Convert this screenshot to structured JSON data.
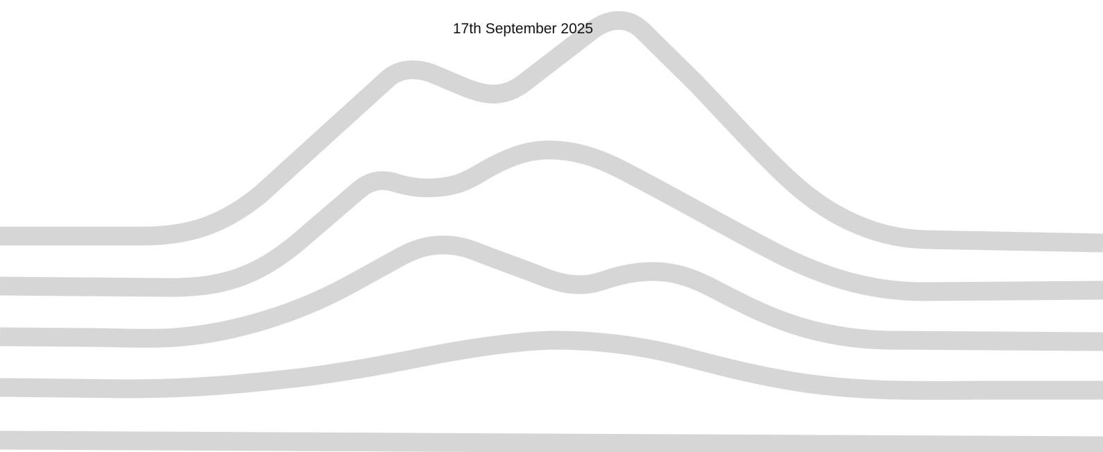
{
  "date_text": "17th September 2025",
  "style": {
    "background": "#ffffff",
    "line_color": "#d6d6d6",
    "text_color": "#111111"
  }
}
